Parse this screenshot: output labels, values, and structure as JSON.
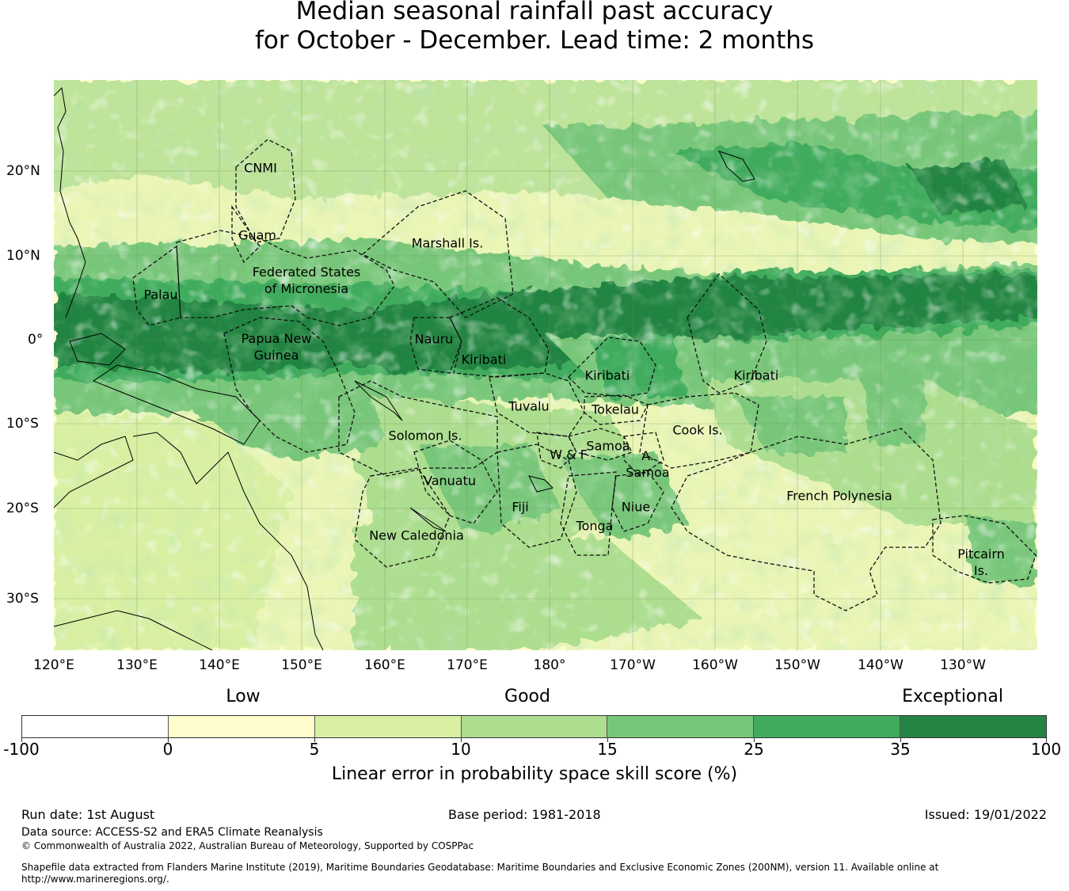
{
  "title": {
    "line1": "Median seasonal rainfall past accuracy",
    "line2": "for October - December. Lead time: 2 months"
  },
  "map": {
    "lon_labels": [
      "120°E",
      "130°E",
      "140°E",
      "150°E",
      "160°E",
      "170°E",
      "180°",
      "170°W",
      "160°W",
      "150°W",
      "140°W",
      "130°W"
    ],
    "lat_labels": [
      "20°N",
      "10°N",
      "0°",
      "10°S",
      "20°S",
      "30°S"
    ],
    "regions": [
      {
        "name": "cnmi",
        "text": "CNMI"
      },
      {
        "name": "guam",
        "text": "Guam"
      },
      {
        "name": "marshall",
        "text": "Marshall Is."
      },
      {
        "name": "fsm",
        "text": "Federated States\nof Micronesia"
      },
      {
        "name": "palau",
        "text": "Palau"
      },
      {
        "name": "png",
        "text": "Papua New\nGuinea"
      },
      {
        "name": "nauru",
        "text": "Nauru"
      },
      {
        "name": "kiribati-w",
        "text": "Kiribati"
      },
      {
        "name": "kiribati-c",
        "text": "Kiribati"
      },
      {
        "name": "kiribati-e",
        "text": "Kiribati"
      },
      {
        "name": "tuvalu",
        "text": "Tuvalu"
      },
      {
        "name": "tokelau",
        "text": "Tokelau"
      },
      {
        "name": "solomon",
        "text": "Solomon Is."
      },
      {
        "name": "samoa",
        "text": "Samoa"
      },
      {
        "name": "wf",
        "text": "W & F"
      },
      {
        "name": "asamoa",
        "text": "A.\nSamoa"
      },
      {
        "name": "cook",
        "text": "Cook Is."
      },
      {
        "name": "vanuatu",
        "text": "Vanuatu"
      },
      {
        "name": "fiji",
        "text": "Fiji"
      },
      {
        "name": "niue",
        "text": "Niue"
      },
      {
        "name": "tonga",
        "text": "Tonga"
      },
      {
        "name": "new-caledonia",
        "text": "New Caledonia"
      },
      {
        "name": "french-polynesia",
        "text": "French Polynesia"
      },
      {
        "name": "pitcairn",
        "text": "Pitcairn\nIs."
      }
    ]
  },
  "legend": {
    "categories": [
      "Low",
      "Good",
      "Exceptional"
    ],
    "colors": [
      "#ffffff",
      "#fffccd",
      "#d9f0a3",
      "#addd8e",
      "#78c679",
      "#41ab5d",
      "#238443"
    ],
    "ticks": [
      "-100",
      "0",
      "5",
      "10",
      "15",
      "25",
      "35",
      "100"
    ],
    "label": "Linear error in probability space skill score (%)"
  },
  "footer": {
    "run_date": "Run date: 1st August",
    "base_period": "Base period: 1981-2018",
    "issued": "Issued: 19/01/2022",
    "data_source": "Data source: ACCESS-S2 and ERA5 Climate Reanalysis",
    "copyright": "© Commonwealth of Australia 2022, Australian Bureau of Meteorology, Supported by COSPPac",
    "shapefile": "Shapefile data extracted from Flanders Marine Institute (2019), Maritime Boundaries Geodatabase: Maritime Boundaries and Exclusive Economic Zones (200NM), version 11. Available online at http://www.marineregions.org/."
  }
}
